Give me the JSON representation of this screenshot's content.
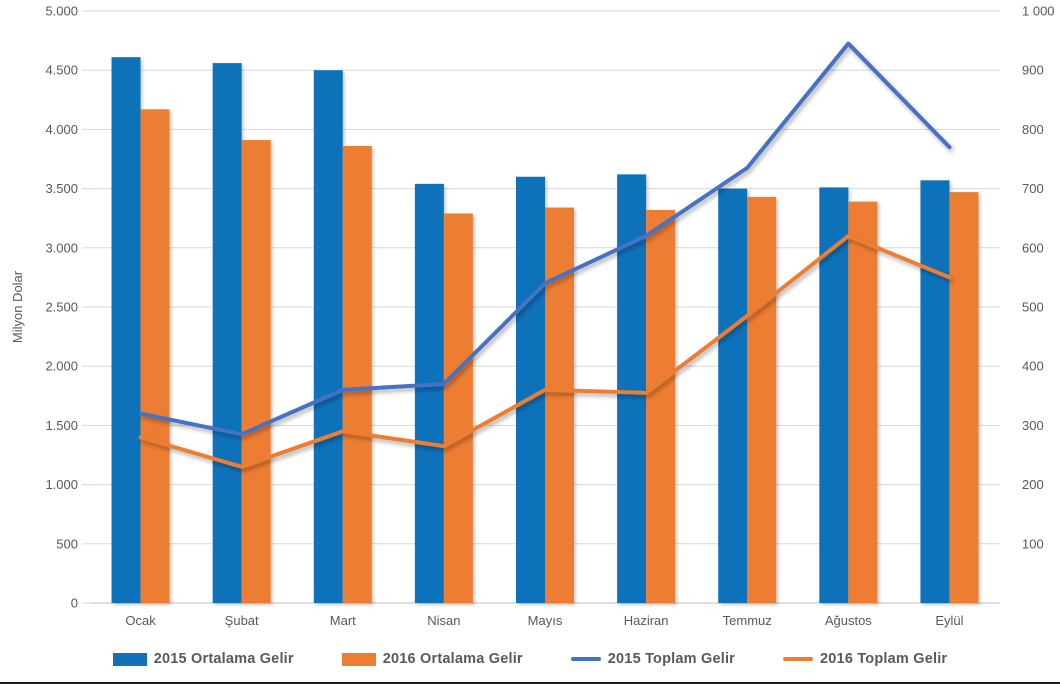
{
  "chart_data": {
    "type": "combo",
    "title": "",
    "categories": [
      "Ocak",
      "Şubat",
      "Mart",
      "Nisan",
      "Mayıs",
      "Haziran",
      "Temmuz",
      "Ağustos",
      "Eylül"
    ],
    "series": [
      {
        "name": "2015 Ortalama Gelir",
        "type": "bar",
        "axis": "left",
        "color": "#1172BA",
        "values": [
          4610,
          4560,
          4500,
          3540,
          3600,
          3620,
          3500,
          3510,
          3570
        ]
      },
      {
        "name": "2016 Ortalama Gelir",
        "type": "bar",
        "axis": "left",
        "color": "#ED7D31",
        "values": [
          4170,
          3910,
          3860,
          3290,
          3340,
          3320,
          3430,
          3390,
          3470
        ]
      },
      {
        "name": "2015 Toplam Gelir",
        "type": "line",
        "axis": "right",
        "color": "#4472C4",
        "values": [
          320,
          285,
          360,
          370,
          540,
          620,
          735,
          945,
          770
        ]
      },
      {
        "name": "2016 Toplam Gelir",
        "type": "line",
        "axis": "right",
        "color": "#ED7D31",
        "values": [
          280,
          230,
          290,
          265,
          360,
          355,
          485,
          620,
          550
        ]
      }
    ],
    "left_axis": {
      "title": "Milyon Dolar",
      "min": 0,
      "max": 5000,
      "step": 500,
      "tick_labels": [
        "5.000",
        "4.500",
        "4.000",
        "3.500",
        "3.000",
        "2.500",
        "2.000",
        "1.500",
        "1.000",
        "500",
        "0"
      ]
    },
    "right_axis": {
      "title": "",
      "min": 0,
      "max": 1000,
      "step": 100,
      "tick_labels": [
        "1 000",
        "900",
        "800",
        "700",
        "600",
        "500",
        "400",
        "300",
        "200",
        "100"
      ]
    },
    "grid": true,
    "gridline_color": "#D9D9D9",
    "axis_line_color": "#BFBFBF",
    "text_color": "#595959",
    "legend_position": "bottom"
  }
}
